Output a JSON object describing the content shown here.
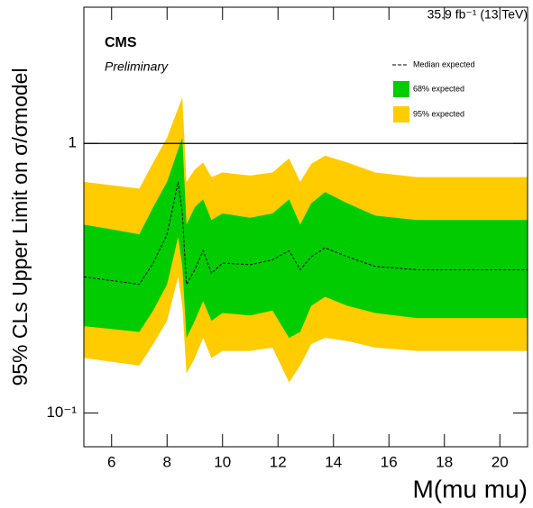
{
  "chart_data": {
    "type": "band",
    "lumi_label": "35.9 fb⁻¹ (13 TeV)",
    "experiment": "CMS",
    "status": "Preliminary",
    "y_label": "95% CLs Upper Limit on σ/σmodel",
    "x_label": "M(mu mu)",
    "log_y": true,
    "xlim": [
      5,
      21
    ],
    "ylim": [
      0.075,
      3.2
    ],
    "xticks": [
      6,
      8,
      10,
      12,
      14,
      16,
      18,
      20
    ],
    "yticks": [
      {
        "value": 0.1,
        "label": "10⁻¹"
      },
      1
    ],
    "reference_line": 1,
    "x": [
      5,
      6,
      7,
      7.5,
      8,
      8.4,
      8.55,
      8.7,
      9,
      9.3,
      9.6,
      10,
      11,
      11.8,
      12.4,
      12.8,
      13.2,
      13.7,
      14.5,
      15.5,
      17,
      19,
      21
    ],
    "series": [
      {
        "name": "Median expected",
        "color": "#000000",
        "values": [
          0.32,
          0.31,
          0.3,
          0.36,
          0.46,
          0.72,
          0.55,
          0.3,
          0.34,
          0.4,
          0.33,
          0.36,
          0.355,
          0.37,
          0.4,
          0.34,
          0.38,
          0.41,
          0.38,
          0.35,
          0.34,
          0.34,
          0.34
        ]
      },
      {
        "name": "68% expected",
        "color": "#00cc00",
        "lower": [
          0.21,
          0.205,
          0.2,
          0.24,
          0.3,
          0.45,
          0.35,
          0.19,
          0.22,
          0.26,
          0.22,
          0.235,
          0.23,
          0.24,
          0.19,
          0.2,
          0.25,
          0.27,
          0.25,
          0.235,
          0.225,
          0.225,
          0.225
        ],
        "upper": [
          0.5,
          0.48,
          0.46,
          0.58,
          0.72,
          0.95,
          1.05,
          0.5,
          0.58,
          0.62,
          0.52,
          0.55,
          0.53,
          0.55,
          0.62,
          0.5,
          0.6,
          0.66,
          0.6,
          0.54,
          0.52,
          0.52,
          0.52
        ]
      },
      {
        "name": "95% expected",
        "color": "#ffcc00",
        "lower": [
          0.16,
          0.155,
          0.15,
          0.18,
          0.22,
          0.32,
          0.25,
          0.14,
          0.16,
          0.19,
          0.16,
          0.17,
          0.17,
          0.175,
          0.13,
          0.15,
          0.18,
          0.19,
          0.185,
          0.175,
          0.17,
          0.17,
          0.17
        ],
        "upper": [
          0.72,
          0.7,
          0.68,
          0.85,
          1.05,
          1.35,
          1.48,
          0.72,
          0.8,
          0.85,
          0.75,
          0.78,
          0.76,
          0.78,
          0.88,
          0.72,
          0.84,
          0.9,
          0.85,
          0.78,
          0.75,
          0.75,
          0.75
        ]
      }
    ]
  }
}
